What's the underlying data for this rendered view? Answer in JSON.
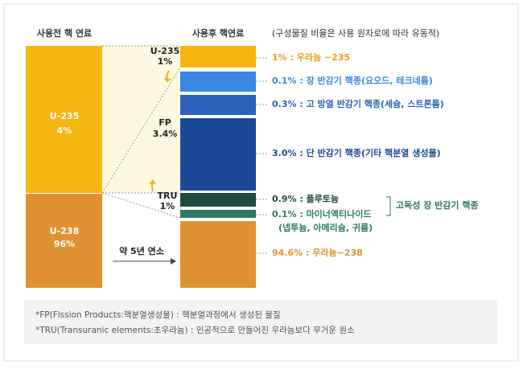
{
  "headers": {
    "before": "사용전 핵 연료",
    "after": "사용후 핵연료",
    "note": "(구성물질 비율은 사용 원자로에 따라 유동적)"
  },
  "before_blocks": [
    {
      "name": "U-235",
      "share": "4%"
    },
    {
      "name": "U-238",
      "share": "96%"
    }
  ],
  "middle_labels": [
    {
      "name": "U-235",
      "share": "1%"
    },
    {
      "name": "FP",
      "share": "3.4%"
    },
    {
      "name": "TRU",
      "share": "1%"
    }
  ],
  "process": "약 5년 연소",
  "after_labels": [
    "1% : 우라늄 ~235",
    "0.1% : 장 반감기 핵종(요오드, 테크네튬)",
    "0.3% : 고 방열 반감기 핵종(세슘, 스트론튬)",
    "3.0% : 단 반감기 핵종(기타 핵분열 생성물)",
    "0.9% : 플루토늄",
    "0.1% : 마이너액티나이드",
    "(넵투늄, 아메리슘, 귀륨)",
    "94.6% : 우라늄~238"
  ],
  "group_label": "고독성 장 반감기 핵종",
  "footnotes": [
    "*FP(Flssion Products:핵분열생성물) : 핵분열과정에서 생성된 물질",
    "*TRU(Transuranic elements:초우라늄) : 인공적으로 만들어진 우라늄보다 무거운 원소"
  ]
}
